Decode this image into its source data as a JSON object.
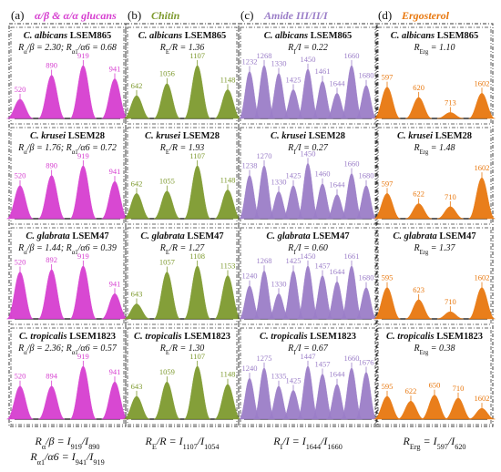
{
  "colors": {
    "glucan": "#d63fd0",
    "chitin": "#7e9a2f",
    "amide": "#9b7ec8",
    "ergosterol": "#e8780f",
    "frame": "#3a3a3a",
    "text": "#111111"
  },
  "columns": [
    {
      "letter": "(a)",
      "title": "α/β & α/α glucans",
      "color_key": "glucan",
      "footer": [
        "R_α/β = I_919/I_890",
        "R_α1/α6 = I_941/I_919"
      ],
      "panels": [
        {
          "strain": "C. albicans",
          "code": "LSEM865",
          "ratio": "R_α/β = 2.30; R_α1/α6 = 0.68",
          "peaks": [
            {
              "label": "520",
              "h": 0.32
            },
            {
              "label": "890",
              "h": 0.72
            },
            {
              "label": "919",
              "h": 0.88
            },
            {
              "label": "941",
              "h": 0.66
            }
          ]
        },
        {
          "strain": "C. krusei",
          "code": "LSEM28",
          "ratio": "R_α/β = 1.76; R_α1/α6 = 0.72",
          "peaks": [
            {
              "label": "520",
              "h": 0.55
            },
            {
              "label": "890",
              "h": 0.72
            },
            {
              "label": "919",
              "h": 0.88
            },
            {
              "label": "941",
              "h": 0.62
            }
          ]
        },
        {
          "strain": "C. glabrata",
          "code": "LSEM47",
          "ratio": "R_α/β = 1.44; R_α1/α6 = 0.39",
          "peaks": [
            {
              "label": "520",
              "h": 0.78
            },
            {
              "label": "892",
              "h": 0.82
            },
            {
              "label": "919",
              "h": 0.88
            },
            {
              "label": "941",
              "h": 0.42
            }
          ]
        },
        {
          "strain": "C. tropicalis",
          "code": "LSEM1823",
          "ratio": "R_α/β = 2.36; R_α1/α6 = 0.57",
          "peaks": [
            {
              "label": "520",
              "h": 0.55
            },
            {
              "label": "894",
              "h": 0.55
            },
            {
              "label": "919",
              "h": 0.88
            },
            {
              "label": "941",
              "h": 0.62
            }
          ]
        }
      ]
    },
    {
      "letter": "(b)",
      "title": "Chitin",
      "color_key": "chitin",
      "footer": [
        "R_E/R = I_1107/I_1054"
      ],
      "panels": [
        {
          "strain": "C. albicans",
          "code": "LSEM865",
          "ratio": "R_E/R = 1.36",
          "peaks": [
            {
              "label": "642",
              "h": 0.38
            },
            {
              "label": "1056",
              "h": 0.58
            },
            {
              "label": "1107",
              "h": 0.88
            },
            {
              "label": "1148",
              "h": 0.48
            }
          ]
        },
        {
          "strain": "C. krusei",
          "code": "LSEM28",
          "ratio": "R_E/R = 1.93",
          "peaks": [
            {
              "label": "642",
              "h": 0.42
            },
            {
              "label": "1055",
              "h": 0.46
            },
            {
              "label": "1107",
              "h": 0.88
            },
            {
              "label": "1148",
              "h": 0.48
            }
          ]
        },
        {
          "strain": "C. glabrata",
          "code": "LSEM47",
          "ratio": "R_E/R = 1.27",
          "peaks": [
            {
              "label": "643",
              "h": 0.25
            },
            {
              "label": "1057",
              "h": 0.78
            },
            {
              "label": "1108",
              "h": 0.88
            },
            {
              "label": "1153",
              "h": 0.72
            }
          ]
        },
        {
          "strain": "C. tropicalis",
          "code": "LSEM1823",
          "ratio": "R_E/R = 1.30",
          "peaks": [
            {
              "label": "643",
              "h": 0.38
            },
            {
              "label": "1059",
              "h": 0.62
            },
            {
              "label": "1107",
              "h": 0.88
            },
            {
              "label": "1148",
              "h": 0.58
            }
          ]
        }
      ]
    },
    {
      "letter": "(c)",
      "title": "Amide III/II/I",
      "color_key": "amide",
      "footer": [
        "R_I/I = I_1644/I_1660"
      ],
      "panels": [
        {
          "strain": "C. albicans",
          "code": "LSEM865",
          "ratio": "R_I/I = 0.22",
          "peaks": [
            {
              "label": "1232",
              "h": 0.78
            },
            {
              "label": "1268",
              "h": 0.88
            },
            {
              "label": "1330",
              "h": 0.75
            },
            {
              "label": "1425",
              "h": 0.48
            },
            {
              "label": "1450",
              "h": 0.82
            },
            {
              "label": "1461",
              "h": 0.62
            },
            {
              "label": "1644",
              "h": 0.42
            },
            {
              "label": "1660",
              "h": 0.88
            },
            {
              "label": "1680",
              "h": 0.55
            }
          ]
        },
        {
          "strain": "C. krusei",
          "code": "LSEM28",
          "ratio": "R_I/I = 0.27",
          "peaks": [
            {
              "label": "1238",
              "h": 0.72
            },
            {
              "label": "1270",
              "h": 0.88
            },
            {
              "label": "1330",
              "h": 0.45
            },
            {
              "label": "1425",
              "h": 0.55
            },
            {
              "label": "1450",
              "h": 0.92
            },
            {
              "label": "1460",
              "h": 0.58
            },
            {
              "label": "1644",
              "h": 0.4
            },
            {
              "label": "1660",
              "h": 0.75
            },
            {
              "label": "1680",
              "h": 0.55
            }
          ]
        },
        {
          "strain": "C. glabrata",
          "code": "LSEM47",
          "ratio": "R_I/I = 0.60",
          "peaks": [
            {
              "label": "1240",
              "h": 0.55
            },
            {
              "label": "1268",
              "h": 0.8
            },
            {
              "label": "1330",
              "h": 0.42
            },
            {
              "label": "1425",
              "h": 0.8
            },
            {
              "label": "1450",
              "h": 0.88
            },
            {
              "label": "1457",
              "h": 0.72
            },
            {
              "label": "1644",
              "h": 0.62
            },
            {
              "label": "1661",
              "h": 0.88
            },
            {
              "label": "1680",
              "h": 0.52
            }
          ]
        },
        {
          "strain": "C. tropicalis",
          "code": "LSEM1823",
          "ratio": "R_I/I = 0.67",
          "peaks": [
            {
              "label": "1240",
              "h": 0.68
            },
            {
              "label": "1275",
              "h": 0.85
            },
            {
              "label": "1335",
              "h": 0.55
            },
            {
              "label": "1425",
              "h": 0.48
            },
            {
              "label": "1447",
              "h": 0.88
            },
            {
              "label": "1457",
              "h": 0.75
            },
            {
              "label": "1644",
              "h": 0.58
            },
            {
              "label": "1660",
              "h": 0.85
            },
            {
              "label": "1676",
              "h": 0.78
            }
          ]
        }
      ]
    },
    {
      "letter": "(d)",
      "title": "Ergosterol",
      "color_key": "ergosterol",
      "footer": [
        "R_Erg = I_597/I_620"
      ],
      "panels": [
        {
          "strain": "C. albicans",
          "code": "LSEM865",
          "ratio": "R_Erg = 1.10",
          "peaks": [
            {
              "label": "597",
              "h": 0.52
            },
            {
              "label": "620",
              "h": 0.35
            },
            {
              "label": "713",
              "h": 0.1
            },
            {
              "label": "1602",
              "h": 0.42
            }
          ]
        },
        {
          "strain": "C. krusei",
          "code": "LSEM28",
          "ratio": "R_Erg = 1.48",
          "peaks": [
            {
              "label": "597",
              "h": 0.42
            },
            {
              "label": "622",
              "h": 0.25
            },
            {
              "label": "710",
              "h": 0.2
            },
            {
              "label": "1602",
              "h": 0.68
            }
          ]
        },
        {
          "strain": "C. glabrata",
          "code": "LSEM47",
          "ratio": "R_Erg = 1.37",
          "peaks": [
            {
              "label": "595",
              "h": 0.52
            },
            {
              "label": "623",
              "h": 0.32
            },
            {
              "label": "710",
              "h": 0.12
            },
            {
              "label": "1602",
              "h": 0.52
            }
          ]
        },
        {
          "strain": "C. tropicalis",
          "code": "LSEM1823",
          "ratio": "R_Erg = 0.38",
          "peaks": [
            {
              "label": "595",
              "h": 0.38
            },
            {
              "label": "622",
              "h": 0.3
            },
            {
              "label": "650",
              "h": 0.4
            },
            {
              "label": "710",
              "h": 0.35
            },
            {
              "label": "1602",
              "h": 0.18
            }
          ]
        }
      ]
    }
  ]
}
